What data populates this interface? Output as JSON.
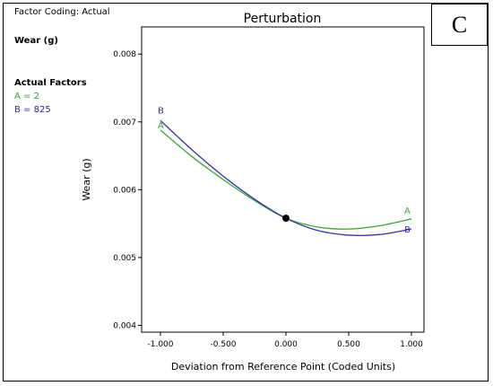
{
  "sidebar": {
    "coding": "Factor Coding: Actual",
    "response": "Wear (g)",
    "factors_heading": "Actual Factors",
    "factor_a": "A = 2",
    "factor_b": "B = 825"
  },
  "panel_letter": "C",
  "colors": {
    "A": "#3aa63a",
    "B": "#3434a8"
  },
  "chart_data": {
    "type": "line",
    "title": "Perturbation",
    "xlabel": "Deviation from Reference Point (Coded Units)",
    "ylabel": "Wear (g)",
    "xlim": [
      -1.15,
      1.1
    ],
    "ylim": [
      0.0039,
      0.0084
    ],
    "x_ticks": [
      -1.0,
      -0.5,
      0.0,
      0.5,
      1.0
    ],
    "x_tick_labels": [
      "-1.000",
      "-0.500",
      "0.000",
      "0.500",
      "1.000"
    ],
    "y_ticks": [
      0.004,
      0.005,
      0.006,
      0.007,
      0.008
    ],
    "y_tick_labels": [
      "0.004",
      "0.005",
      "0.006",
      "0.007",
      "0.008"
    ],
    "reference_point": {
      "x": 0.0,
      "y": 0.00558
    },
    "series": [
      {
        "name": "A",
        "x": [
          -1.0,
          -0.75,
          -0.5,
          -0.25,
          0.0,
          0.25,
          0.5,
          0.75,
          1.0
        ],
        "values": [
          0.00688,
          0.00649,
          0.00615,
          0.00584,
          0.00558,
          0.00545,
          0.00542,
          0.00547,
          0.00557
        ]
      },
      {
        "name": "B",
        "x": [
          -1.0,
          -0.75,
          -0.5,
          -0.25,
          0.0,
          0.25,
          0.5,
          0.75,
          1.0
        ],
        "values": [
          0.00702,
          0.00659,
          0.0062,
          0.00586,
          0.00558,
          0.0054,
          0.00533,
          0.00534,
          0.00542
        ]
      }
    ]
  }
}
